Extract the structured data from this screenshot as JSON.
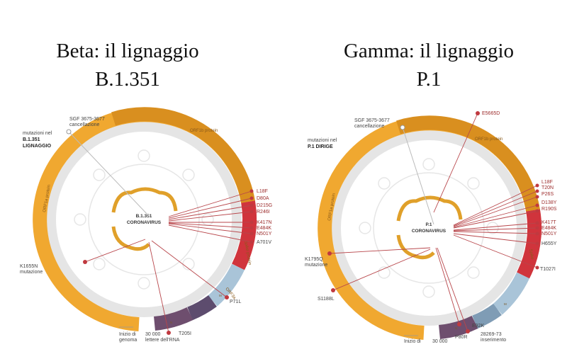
{
  "panels": [
    {
      "id": "beta",
      "title_line1": "Beta: il lignaggio",
      "title_line2": "B.1.351",
      "legend_text_1": "mutazioni nel",
      "legend_text_2": "B.1.351",
      "legend_text_3": "LIGNAGGIO",
      "deletion_1": "SGF 3675-3677",
      "deletion_2": "cancellazione",
      "center_1": "B.1.351",
      "center_2": "CORONAVIRUS",
      "ring_orf1b": "ORF1b protein",
      "ring_orf1a": "ORF1a protein",
      "ring_spike": "Spike protein",
      "ring_orf3a": "ORF3a",
      "genome_start_1": "Inizio di",
      "genome_start_2": "genoma",
      "genome_letters_1": "30 000",
      "genome_letters_2": "lettere dell'RNA",
      "genes": [
        "N",
        "M",
        "E",
        "8",
        "7",
        "6"
      ],
      "mutations_spike": [
        "L18F",
        "D80A",
        "D215G",
        "R246I",
        "K417N",
        "E484K",
        "N501Y",
        "A701V"
      ],
      "mutations_other": [
        "K1655N",
        "P71L",
        "T205I"
      ],
      "mutations_other_units": [
        {
          "label": "K1655N",
          "mutation_word": "mutazione"
        }
      ]
    },
    {
      "id": "gamma",
      "title_line1": "Gamma: il lignaggio",
      "title_line2": "P.1",
      "legend_text_1": "mutazioni nel",
      "legend_text_2": "P.1 DIRIGE",
      "deletion_1": "SGF 3675-3677",
      "deletion_2": "cancellazione",
      "top_mutation": "E5665D",
      "center_1": "P.1",
      "center_2": "CORONAVIRUS",
      "ring_orf1b": "ORF1b protein",
      "ring_orf1a": "ORF1a protein",
      "ring_spike": "Spike",
      "genome_start": "Inizio di",
      "genome_letters": "30 000",
      "genes": [
        "N",
        "M",
        "E",
        "8",
        "7",
        "6"
      ],
      "mutations_spike": [
        "L18F",
        "T20N",
        "P26S",
        "D138Y",
        "R190S",
        "K417T",
        "E484K",
        "N501Y",
        "H655Y",
        "T1027I"
      ],
      "mutations_other": [
        "K1795Q",
        "S1188L",
        "P80R",
        "E92K"
      ],
      "k1795q_word": "mutazione",
      "insertion_1": "28269-73",
      "insertion_2": "inserimento"
    }
  ],
  "colors": {
    "orange": "#f0a830",
    "orange_dark": "#d98f1f",
    "red": "#d0343c",
    "red_line": "#b8464b",
    "blue_light": "#a9c4d8",
    "purple": "#6e4e6e",
    "grey_ring": "#e3e3e3"
  }
}
